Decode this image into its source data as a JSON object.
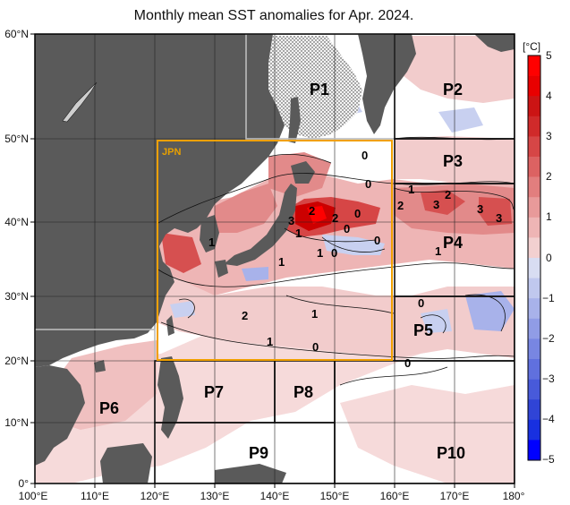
{
  "title": "Monthly mean SST anomalies for Apr. 2024.",
  "lon_ticks": [
    "100°E",
    "110°E",
    "120°E",
    "130°E",
    "140°E",
    "150°E",
    "160°E",
    "170°E",
    "180°"
  ],
  "lat_ticks": [
    "60°N",
    "50°N",
    "40°N",
    "30°N",
    "20°N",
    "10°N",
    "0°"
  ],
  "jpn_box_label": "JPN",
  "colorbar": {
    "unit": "[°C]",
    "ticks": [
      "5",
      "4",
      "3",
      "2",
      "1",
      "0",
      "−1",
      "−2",
      "−3",
      "−4",
      "−5"
    ],
    "positive_colors": [
      "#f2d0d0",
      "#eeb5b5",
      "#e89a9a",
      "#e27e7e",
      "#dc6262",
      "#d64646",
      "#d02a2a",
      "#cc1414",
      "#e80000",
      "#ff0000"
    ],
    "negative_colors": [
      "#d8ddf2",
      "#c0c8ee",
      "#a8b2ea",
      "#909ce6",
      "#7886e2",
      "#6070de",
      "#485ada",
      "#3044d6",
      "#1830e0",
      "#0000ff"
    ]
  },
  "regions": [
    {
      "label": "P1"
    },
    {
      "label": "P2"
    },
    {
      "label": "P3"
    },
    {
      "label": "P4"
    },
    {
      "label": "P5"
    },
    {
      "label": "P6"
    },
    {
      "label": "P7"
    },
    {
      "label": "P8"
    },
    {
      "label": "P9"
    },
    {
      "label": "P10"
    }
  ],
  "contour_labels": [
    "0",
    "0",
    "1",
    "2",
    "3",
    "2",
    "1",
    "2",
    "3",
    "3",
    "0",
    "1",
    "1",
    "0",
    "1",
    "2",
    "1",
    "0",
    "0",
    "0",
    "0",
    "1",
    "2",
    "1",
    "0",
    "3"
  ],
  "colors": {
    "land": "#5a5a5a",
    "sea_ice": "#eeeeee",
    "jpn_box": "#f0a000",
    "grid": "#222222",
    "ocean_neutral": "#ffffff"
  }
}
